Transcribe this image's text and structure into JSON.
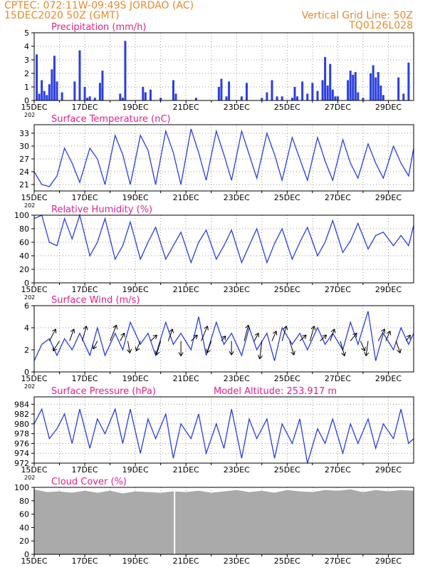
{
  "header": {
    "line1_left": "CPTEC:   072:11W-09:49S   JORDAO (AC)",
    "line2_left": "15DEC2020 50Z (GMT)",
    "line1_right": "Vertical Grid Line: 50Z",
    "line2_right": "TQ0126L028"
  },
  "colors": {
    "header": "#e58a2e",
    "title": "#e0208c",
    "series": "#2a3fe0",
    "bars": "#2a3fe0",
    "cloud": "#aaaaaa",
    "grid": "#999999"
  },
  "x_axis": {
    "tick_labels": [
      "15DEC",
      "17DEC",
      "19DEC",
      "21DEC",
      "23DEC",
      "25DEC",
      "27DEC",
      "29DEC"
    ],
    "year_label": "202",
    "day_min": 15,
    "day_max": 30
  },
  "chart_data": [
    {
      "type": "bar",
      "title": "Precipitation (mm/h)",
      "ylim": [
        0,
        5
      ],
      "yticks": [
        0,
        1,
        2,
        3,
        4,
        5
      ],
      "x_days": [
        15.1,
        15.2,
        15.3,
        15.4,
        15.5,
        15.6,
        15.7,
        15.8,
        15.9,
        16.1,
        16.6,
        16.8,
        17.0,
        17.1,
        17.2,
        17.4,
        17.6,
        17.7,
        18.4,
        18.5,
        18.6,
        19.3,
        19.4,
        19.6,
        20.0,
        20.5,
        20.6,
        21.4,
        22.3,
        22.4,
        22.6,
        22.7,
        23.2,
        23.4,
        24.0,
        24.2,
        24.4,
        24.6,
        24.8,
        25.2,
        25.3,
        25.4,
        25.6,
        25.8,
        26.0,
        26.2,
        26.4,
        26.5,
        26.6,
        26.7,
        26.8,
        26.9,
        27.0,
        27.4,
        27.5,
        27.6,
        27.7,
        27.8,
        28.0,
        28.3,
        28.4,
        28.5,
        28.6,
        28.7,
        28.8,
        29.4,
        29.6,
        29.8
      ],
      "values": [
        3.4,
        0.5,
        1.5,
        0.7,
        0.4,
        1.2,
        2.3,
        3.3,
        1.4,
        0.6,
        1.4,
        3.7,
        1.0,
        0.2,
        0.3,
        0.2,
        1.3,
        2.2,
        0.5,
        0.2,
        4.4,
        1.0,
        0.6,
        0.8,
        0.2,
        1.5,
        0.5,
        0.2,
        1.0,
        1.6,
        0.3,
        1.4,
        0.3,
        1.3,
        0.2,
        0.6,
        1.5,
        0.3,
        0.3,
        0.2,
        1.0,
        0.3,
        1.4,
        0.5,
        1.3,
        0.7,
        1.5,
        3.2,
        1.1,
        2.7,
        0.8,
        0.3,
        0.3,
        1.5,
        2.2,
        1.9,
        2.1,
        0.6,
        0.2,
        2.0,
        2.6,
        1.7,
        2.1,
        1.1,
        0.4,
        1.7,
        0.5,
        2.8
      ]
    },
    {
      "type": "line",
      "title": "Surface Temperature (nC)",
      "ylim": [
        19.5,
        35
      ],
      "yticks": [
        21,
        24,
        27,
        30,
        33
      ],
      "x_days": [
        15.0,
        15.3,
        15.6,
        15.9,
        16.2,
        16.5,
        16.8,
        17.2,
        17.5,
        17.8,
        18.2,
        18.5,
        18.8,
        19.2,
        19.5,
        19.8,
        20.2,
        20.5,
        20.8,
        21.2,
        21.5,
        21.8,
        22.2,
        22.5,
        22.8,
        23.2,
        23.5,
        23.8,
        24.2,
        24.5,
        24.8,
        25.2,
        25.5,
        25.8,
        26.2,
        26.5,
        26.8,
        27.2,
        27.5,
        27.8,
        28.2,
        28.5,
        28.8,
        29.2,
        29.5,
        29.8,
        30.0
      ],
      "values": [
        24,
        21,
        20.5,
        23,
        29.5,
        26,
        21.5,
        29.5,
        27,
        21,
        32.5,
        28,
        21,
        32.5,
        29,
        21,
        33.5,
        28.5,
        21,
        34,
        28.5,
        22,
        33.5,
        28,
        22,
        33.5,
        28,
        22.5,
        33,
        28,
        22,
        32,
        27,
        22,
        32,
        26.5,
        22,
        31.5,
        26,
        22.5,
        30.5,
        26,
        22.5,
        30,
        26,
        23,
        29.5
      ]
    },
    {
      "type": "line",
      "title": "Relative Humidity (%)",
      "ylim": [
        0,
        100
      ],
      "yticks": [
        0,
        20,
        40,
        60,
        80,
        100
      ],
      "x_days": [
        15.0,
        15.3,
        15.6,
        15.9,
        16.2,
        16.5,
        16.8,
        17.2,
        17.5,
        17.8,
        18.2,
        18.5,
        18.8,
        19.2,
        19.5,
        19.8,
        20.2,
        20.5,
        20.8,
        21.2,
        21.5,
        21.8,
        22.2,
        22.5,
        22.8,
        23.2,
        23.5,
        23.8,
        24.2,
        24.5,
        24.8,
        25.2,
        25.5,
        25.8,
        26.2,
        26.5,
        26.8,
        27.2,
        27.5,
        27.8,
        28.2,
        28.5,
        28.8,
        29.2,
        29.5,
        29.8,
        30.0
      ],
      "values": [
        95,
        100,
        60,
        55,
        95,
        65,
        100,
        40,
        60,
        95,
        35,
        55,
        90,
        35,
        60,
        82,
        35,
        55,
        75,
        30,
        60,
        78,
        35,
        55,
        78,
        30,
        55,
        80,
        30,
        58,
        80,
        35,
        60,
        82,
        40,
        60,
        92,
        45,
        62,
        88,
        50,
        70,
        75,
        55,
        70,
        55,
        85
      ]
    },
    {
      "type": "line",
      "title": "Surface Wind (m/s)",
      "ylim": [
        0,
        6
      ],
      "yticks": [
        0,
        2,
        4,
        6
      ],
      "x_days": [
        15.0,
        15.3,
        15.6,
        15.9,
        16.2,
        16.5,
        16.8,
        17.2,
        17.5,
        17.8,
        18.2,
        18.5,
        18.8,
        19.2,
        19.5,
        19.8,
        20.2,
        20.5,
        20.8,
        21.2,
        21.5,
        21.8,
        22.2,
        22.5,
        22.8,
        23.2,
        23.5,
        23.8,
        24.2,
        24.5,
        24.8,
        25.2,
        25.5,
        25.8,
        26.2,
        26.5,
        26.8,
        27.2,
        27.5,
        27.8,
        28.2,
        28.5,
        28.8,
        29.2,
        29.5,
        29.8,
        30.0
      ],
      "values": [
        1.0,
        2.5,
        3.0,
        1.5,
        3.0,
        2.0,
        3.5,
        1.5,
        4.0,
        1.5,
        3.5,
        2.0,
        4.5,
        2.5,
        3.5,
        1.5,
        4.5,
        2.5,
        3.5,
        2.0,
        5.0,
        1.5,
        4.5,
        2.5,
        3.5,
        1.5,
        4.0,
        2.0,
        3.5,
        1.0,
        4.0,
        2.5,
        3.5,
        2.0,
        4.0,
        2.5,
        3.5,
        2.0,
        4.5,
        2.5,
        5.5,
        1.0,
        3.5,
        2.0,
        4.0,
        2.5,
        3.5
      ],
      "wind_vectors": {
        "x_days": [
          15.6,
          16.0,
          16.4,
          16.9,
          17.5,
          18.0,
          18.4,
          18.7,
          19.2,
          19.6,
          20.0,
          20.3,
          20.8,
          21.2,
          21.6,
          22.0,
          22.4,
          22.8,
          23.3,
          23.7,
          24.0,
          24.4,
          24.8,
          25.1,
          25.5,
          25.9,
          26.3,
          26.7,
          27.1,
          27.5,
          27.9,
          28.2,
          28.6,
          28.9,
          29.3,
          29.7
        ],
        "dx": [
          0.3,
          -0.3,
          0.2,
          0.2,
          -0.2,
          0.3,
          0.2,
          0.1,
          -0.2,
          0.3,
          -0.2,
          0.2,
          0.0,
          0.3,
          0.3,
          -0.2,
          0.2,
          0.0,
          0.2,
          0.2,
          -0.1,
          0.2,
          0.2,
          0.2,
          0.3,
          0.2,
          0.3,
          0.2,
          0.2,
          0.3,
          0.2,
          -0.1,
          0.3,
          0.2,
          0.2,
          0.2
        ],
        "dy": [
          1.2,
          -1.0,
          1.2,
          1.5,
          -0.8,
          1.6,
          0.8,
          -1.2,
          -1.0,
          0.6,
          -1.4,
          1.2,
          -1.5,
          0.6,
          1.5,
          -1.2,
          0.5,
          -1.4,
          1.6,
          0.8,
          -1.8,
          1.0,
          1.5,
          -1.4,
          0.6,
          1.5,
          0.6,
          1.2,
          -1.5,
          0.8,
          -1.0,
          -1.5,
          1.2,
          1.0,
          -1.2,
          0.6
        ]
      }
    },
    {
      "type": "line",
      "title": "Surface Pressure (hPa)",
      "annotation": "Model Altitude: 253.917 m",
      "ylim": [
        972,
        985.5
      ],
      "yticks": [
        972,
        974,
        976,
        978,
        980,
        982,
        984
      ],
      "x_days": [
        15.0,
        15.3,
        15.6,
        15.9,
        16.2,
        16.5,
        16.8,
        17.2,
        17.5,
        17.8,
        18.2,
        18.5,
        18.8,
        19.2,
        19.5,
        19.8,
        20.2,
        20.5,
        20.8,
        21.2,
        21.5,
        21.8,
        22.2,
        22.5,
        22.8,
        23.2,
        23.5,
        23.8,
        24.2,
        24.5,
        24.8,
        25.2,
        25.5,
        25.8,
        26.2,
        26.5,
        26.8,
        27.2,
        27.5,
        27.8,
        28.2,
        28.5,
        28.8,
        29.2,
        29.5,
        29.8,
        30.0
      ],
      "values": [
        980,
        983,
        977,
        979,
        982,
        976,
        983,
        975,
        981,
        978,
        983,
        976,
        983,
        974,
        981,
        977,
        982,
        973,
        980,
        977,
        982,
        974,
        980,
        975,
        983,
        973,
        981,
        977,
        981,
        973,
        980,
        976,
        981,
        972,
        979,
        976,
        981,
        974,
        980,
        976,
        981,
        975,
        980,
        977,
        983,
        976,
        977
      ]
    },
    {
      "type": "area",
      "title": "Cloud Cover (%)",
      "ylim": [
        0,
        100
      ],
      "yticks": [
        0,
        20,
        40,
        60,
        80,
        100
      ],
      "x_days": [
        15.0,
        15.5,
        16.0,
        16.5,
        17.0,
        17.5,
        18.0,
        18.5,
        19.0,
        19.5,
        20.0,
        20.5,
        21.0,
        21.5,
        22.0,
        22.5,
        23.0,
        23.5,
        24.0,
        24.5,
        25.0,
        25.5,
        26.0,
        26.5,
        27.0,
        27.5,
        28.0,
        28.5,
        29.0,
        29.5,
        30.0
      ],
      "values": [
        97,
        93,
        94,
        92,
        95,
        92,
        95,
        91,
        94,
        93,
        92,
        94,
        93,
        95,
        92,
        94,
        96,
        93,
        95,
        92,
        96,
        94,
        93,
        96,
        95,
        97,
        93,
        96,
        94,
        96,
        95
      ]
    }
  ]
}
